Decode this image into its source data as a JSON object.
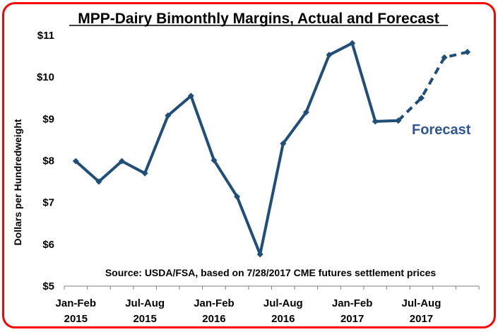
{
  "chart_data": {
    "type": "line",
    "title": "MPP-Dairy Bimonthly Margins, Actual and Forecast",
    "ylabel": "Dollars per Hundredweight",
    "xlabel": "",
    "ylim": [
      5,
      11
    ],
    "yticks": [
      "$5",
      "$6",
      "$7",
      "$8",
      "$9",
      "$10",
      "$11"
    ],
    "xtick_labels": [
      {
        "period": "Jan-Feb",
        "year": "2015"
      },
      {
        "period": "Jul-Aug",
        "year": "2015"
      },
      {
        "period": "Jan-Feb",
        "year": "2016"
      },
      {
        "period": "Jul-Aug",
        "year": "2016"
      },
      {
        "period": "Jan-Feb",
        "year": "2017"
      },
      {
        "period": "Jul-Aug",
        "year": "2017"
      }
    ],
    "categories": [
      "Jan-Feb 2015",
      "Mar-Apr 2015",
      "May-Jun 2015",
      "Jul-Aug 2015",
      "Sep-Oct 2015",
      "Nov-Dec 2015",
      "Jan-Feb 2016",
      "Mar-Apr 2016",
      "May-Jun 2016",
      "Jul-Aug 2016",
      "Sep-Oct 2016",
      "Nov-Dec 2016",
      "Jan-Feb 2017",
      "Mar-Apr 2017",
      "May-Jun 2017",
      "Jul-Aug 2017",
      "Sep-Oct 2017",
      "Nov-Dec 2017"
    ],
    "series": [
      {
        "style": "solid",
        "values": [
          7.99,
          7.5,
          7.99,
          7.7,
          9.08,
          9.55,
          8.01,
          7.14,
          5.76,
          8.41,
          9.16,
          10.53,
          10.81,
          8.94,
          8.96,
          null,
          null,
          null
        ]
      },
      {
        "name": "Forecast",
        "style": "dashed",
        "values": [
          null,
          null,
          null,
          null,
          null,
          null,
          null,
          null,
          null,
          null,
          null,
          null,
          null,
          null,
          8.96,
          9.5,
          10.47,
          10.6
        ]
      }
    ],
    "source": "Source:  USDA/FSA, based on 7/28/2017 CME futures settlement prices",
    "grid": false,
    "colors": {
      "line": "#1f4e79",
      "annotation": "#2e5596",
      "border": "#ff0000"
    }
  }
}
